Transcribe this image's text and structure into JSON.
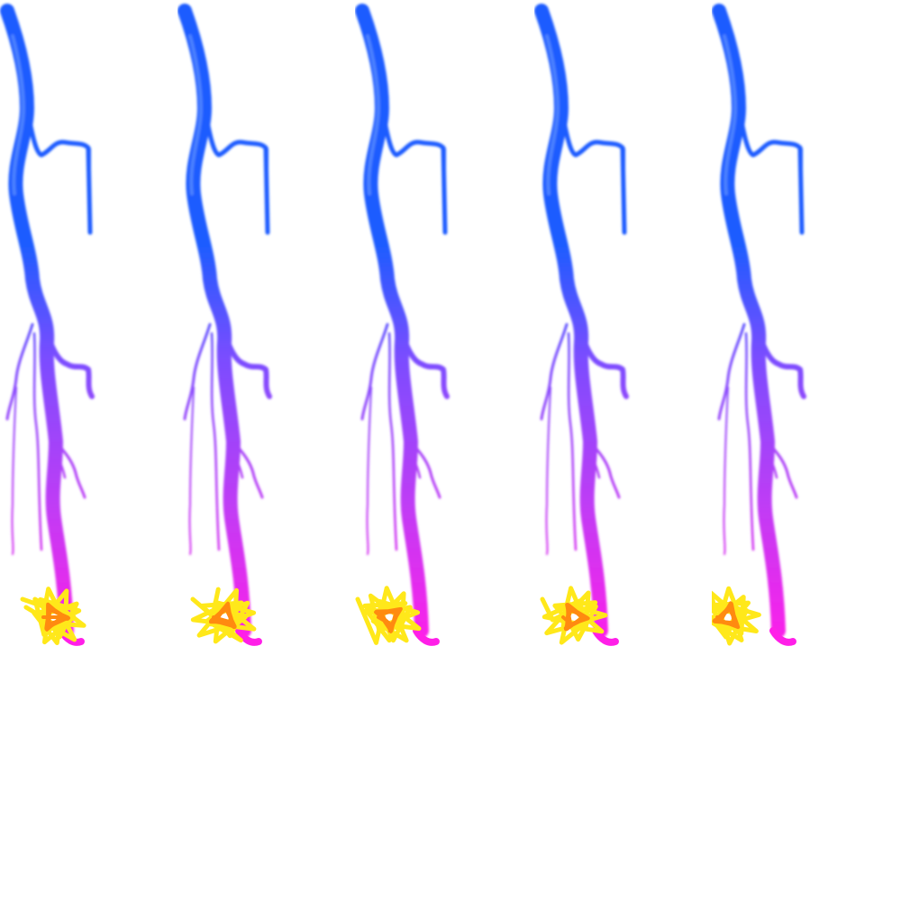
{
  "sprite_sheet": {
    "frame_count": 5,
    "colors": {
      "bolt_top": "#1f5cff",
      "bolt_mid": "#7a4dff",
      "bolt_bottom": "#ff1fe8",
      "spark_outer": "#ffe81a",
      "spark_inner": "#ff8a10",
      "background": "#ffffff"
    },
    "frames": [
      {
        "name": "frame-1",
        "icon": "lightning-bolt-icon"
      },
      {
        "name": "frame-2",
        "icon": "lightning-bolt-icon"
      },
      {
        "name": "frame-3",
        "icon": "lightning-bolt-icon"
      },
      {
        "name": "frame-4",
        "icon": "lightning-bolt-icon"
      },
      {
        "name": "frame-5",
        "icon": "lightning-bolt-icon"
      }
    ]
  }
}
